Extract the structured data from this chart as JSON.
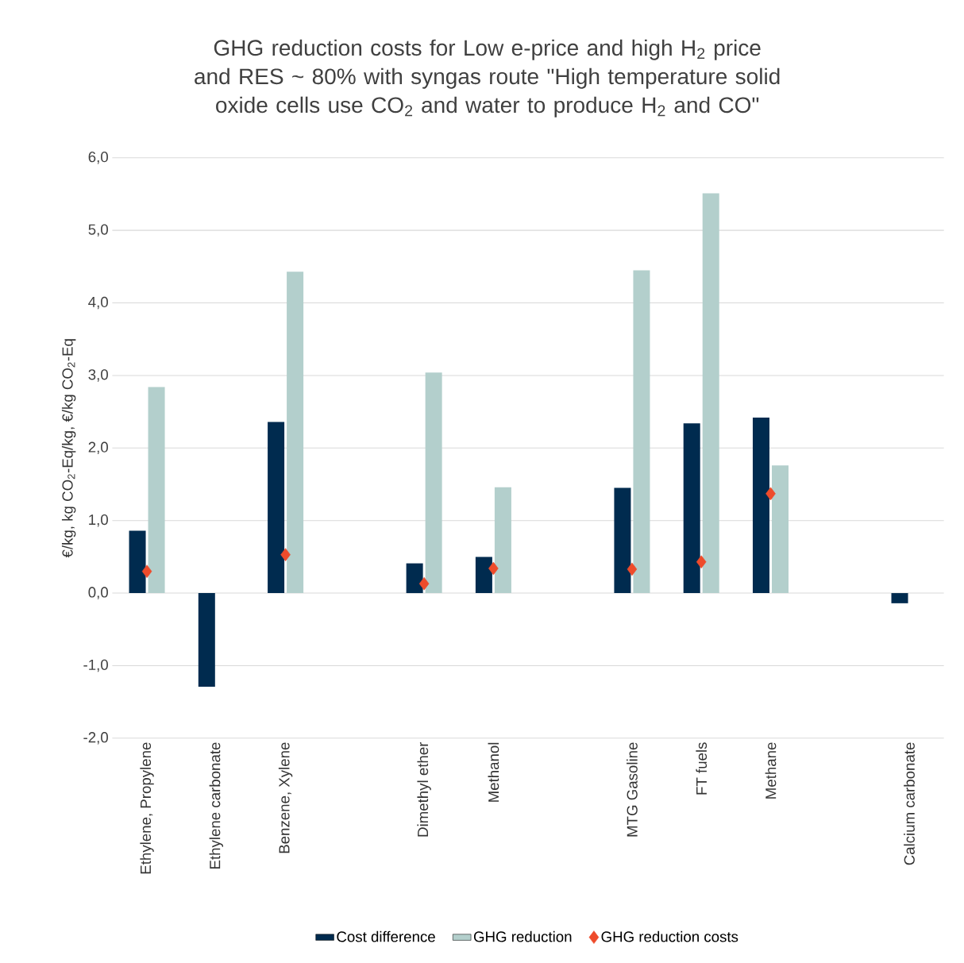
{
  "chart_data": {
    "type": "bar",
    "title": "GHG reduction costs for Low e-price and high H$_{2}$ price and RES ~ 80% with syngas route \"High temperature solid oxide cells use CO$_{2}$ and water to produce H$_{2}$ and CO\"",
    "ylabel": "€/kg, kg CO$_{2}$-Eq/kg, €/kg CO$_{2}$-Eq",
    "categories": [
      "Ethylene, Propylene",
      "Ethylene carbonate",
      "Benzene, Xylene",
      null,
      "Dimethyl ether",
      "Methanol",
      null,
      "MTG Gasoline",
      "FT fuels",
      "Methane",
      null,
      "Calcium carbonate"
    ],
    "series": [
      {
        "name": "Cost difference",
        "color": "#002b4f",
        "values": [
          0.86,
          -1.29,
          2.36,
          null,
          0.41,
          0.5,
          null,
          1.45,
          2.34,
          2.42,
          null,
          -0.14
        ]
      },
      {
        "name": "GHG reduction",
        "color": "#b3cfcc",
        "values": [
          2.84,
          null,
          4.43,
          null,
          3.04,
          1.46,
          null,
          4.45,
          5.51,
          1.76,
          null,
          null
        ]
      },
      {
        "name": "GHG reduction costs",
        "type": "scatter",
        "marker": "diamond",
        "color": "#ee4b2b",
        "values": [
          0.3,
          null,
          0.53,
          null,
          0.13,
          0.34,
          null,
          0.33,
          0.43,
          1.37,
          null,
          null
        ]
      }
    ],
    "ylim": [
      -2,
      6
    ],
    "yticks": [
      {
        "value": -2,
        "label": "-2,0"
      },
      {
        "value": -1,
        "label": "-1,0"
      },
      {
        "value": 0,
        "label": "0,0"
      },
      {
        "value": 1,
        "label": "1,0"
      },
      {
        "value": 2,
        "label": "2,0"
      },
      {
        "value": 3,
        "label": "3,0"
      },
      {
        "value": 4,
        "label": "4,0"
      },
      {
        "value": 5,
        "label": "5,0"
      },
      {
        "value": 6,
        "label": "6,0"
      }
    ],
    "grid": "y",
    "legend": "bottom"
  }
}
